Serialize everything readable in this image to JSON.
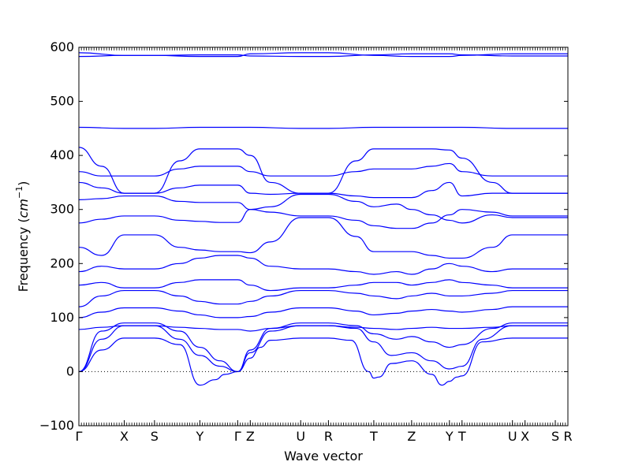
{
  "chart_data": {
    "type": "line",
    "title": "",
    "xlabel": "Wave vector",
    "ylabel_text": "Frequency (",
    "ylabel_unit": "cm",
    "ylabel_exp": "−1",
    "ylabel_close": ")",
    "ylim": [
      -100,
      600
    ],
    "yticks": [
      -100,
      0,
      100,
      200,
      300,
      400,
      500,
      600
    ],
    "zero_line": "dotted",
    "grid": false,
    "line_color": "#0000ff",
    "kpoints": [
      {
        "label": "Γ",
        "x": 0.0
      },
      {
        "label": "X",
        "x": 0.9
      },
      {
        "label": "S",
        "x": 1.5
      },
      {
        "label": "Y",
        "x": 2.4
      },
      {
        "label": "Γ",
        "x": 3.15
      },
      {
        "label": "Z",
        "x": 3.4
      },
      {
        "label": "U",
        "x": 4.4
      },
      {
        "label": "R",
        "x": 4.95
      },
      {
        "label": "T",
        "x": 5.85
      },
      {
        "label": "Z",
        "x": 6.6
      },
      {
        "label": "Y",
        "x": 7.35
      },
      {
        "label": "T",
        "x": 7.6
      },
      {
        "label": "U",
        "x": 8.6
      },
      {
        "label": "X",
        "x": 8.85
      },
      {
        "label": "S",
        "x": 9.45
      },
      {
        "label": "R",
        "x": 9.7
      }
    ],
    "xlim": [
      0,
      9.7
    ],
    "series": [
      {
        "x": [
          0,
          0.45,
          0.9,
          1.5,
          2.0,
          2.4,
          2.7,
          2.9,
          3.15,
          3.4,
          3.6,
          3.8,
          4.4,
          4.95,
          5.4,
          5.75,
          5.85,
          5.95,
          6.2,
          6.6,
          7.0,
          7.2,
          7.35,
          7.5,
          7.6,
          8.0,
          8.6,
          8.85,
          9.45,
          9.7
        ],
        "values": [
          0,
          40,
          62,
          62,
          50,
          -25,
          -15,
          -5,
          0,
          25,
          45,
          58,
          62,
          62,
          58,
          0,
          -12,
          -10,
          15,
          20,
          -5,
          -25,
          -18,
          -10,
          -8,
          55,
          62,
          62,
          62,
          62
        ]
      },
      {
        "x": [
          0,
          0.45,
          0.9,
          1.5,
          2.0,
          2.4,
          2.8,
          3.15,
          3.4,
          3.8,
          4.4,
          4.95,
          5.5,
          5.85,
          6.2,
          6.6,
          7.0,
          7.35,
          7.6,
          8.0,
          8.6,
          8.85,
          9.45,
          9.7
        ],
        "values": [
          0,
          60,
          85,
          85,
          60,
          30,
          10,
          0,
          35,
          75,
          85,
          85,
          80,
          55,
          30,
          35,
          20,
          5,
          10,
          60,
          85,
          85,
          85,
          85
        ]
      },
      {
        "x": [
          0,
          0.45,
          0.9,
          1.5,
          2.0,
          2.4,
          2.8,
          3.15,
          3.4,
          3.8,
          4.4,
          4.95,
          5.5,
          5.85,
          6.3,
          6.6,
          7.0,
          7.35,
          7.6,
          8.2,
          8.6,
          8.85,
          9.45,
          9.7
        ],
        "values": [
          0,
          75,
          90,
          90,
          75,
          45,
          20,
          0,
          40,
          80,
          90,
          90,
          85,
          70,
          60,
          65,
          55,
          45,
          50,
          80,
          90,
          90,
          90,
          90
        ]
      },
      {
        "x": [
          0,
          0.45,
          0.9,
          1.5,
          2.0,
          2.4,
          2.8,
          3.15,
          3.4,
          3.8,
          4.4,
          4.95,
          5.5,
          5.85,
          6.3,
          6.6,
          7.0,
          7.35,
          7.6,
          8.2,
          8.6,
          8.85,
          9.45,
          9.7
        ],
        "values": [
          78,
          82,
          85,
          85,
          82,
          80,
          78,
          78,
          75,
          80,
          85,
          85,
          82,
          80,
          78,
          80,
          82,
          80,
          80,
          82,
          85,
          85,
          85,
          85
        ]
      },
      {
        "x": [
          0,
          0.45,
          0.9,
          1.5,
          2.0,
          2.4,
          2.8,
          3.15,
          3.4,
          3.8,
          4.4,
          4.95,
          5.5,
          5.85,
          6.3,
          6.6,
          7.0,
          7.35,
          7.6,
          8.2,
          8.6,
          8.85,
          9.45,
          9.7
        ],
        "values": [
          100,
          110,
          118,
          118,
          112,
          105,
          100,
          100,
          102,
          110,
          118,
          118,
          112,
          105,
          108,
          112,
          115,
          112,
          110,
          115,
          120,
          120,
          120,
          120
        ]
      },
      {
        "x": [
          0,
          0.45,
          0.9,
          1.5,
          2.0,
          2.4,
          2.8,
          3.15,
          3.4,
          3.8,
          4.4,
          4.95,
          5.5,
          5.85,
          6.3,
          6.6,
          7.0,
          7.35,
          7.6,
          8.2,
          8.6,
          8.85,
          9.45,
          9.7
        ],
        "values": [
          120,
          140,
          150,
          150,
          140,
          130,
          125,
          125,
          130,
          140,
          150,
          150,
          145,
          140,
          135,
          140,
          145,
          140,
          140,
          145,
          150,
          150,
          150,
          150
        ]
      },
      {
        "x": [
          0,
          0.45,
          0.9,
          1.5,
          2.0,
          2.4,
          2.8,
          3.15,
          3.4,
          3.8,
          4.4,
          4.95,
          5.5,
          5.85,
          6.3,
          6.6,
          7.0,
          7.35,
          7.6,
          8.2,
          8.6,
          8.85,
          9.45,
          9.7
        ],
        "values": [
          160,
          165,
          155,
          155,
          165,
          170,
          170,
          170,
          160,
          150,
          155,
          155,
          160,
          165,
          165,
          160,
          165,
          170,
          165,
          160,
          155,
          155,
          155,
          155
        ]
      },
      {
        "x": [
          0,
          0.45,
          0.9,
          1.5,
          2.0,
          2.4,
          2.8,
          3.15,
          3.4,
          3.8,
          4.4,
          4.95,
          5.5,
          5.85,
          6.3,
          6.6,
          7.0,
          7.35,
          7.6,
          8.2,
          8.6,
          8.85,
          9.45,
          9.7
        ],
        "values": [
          185,
          195,
          190,
          190,
          200,
          210,
          215,
          215,
          210,
          195,
          190,
          190,
          185,
          180,
          185,
          180,
          190,
          200,
          195,
          185,
          190,
          190,
          190,
          190
        ]
      },
      {
        "x": [
          0,
          0.45,
          0.9,
          1.5,
          2.0,
          2.4,
          2.8,
          3.15,
          3.4,
          3.8,
          4.4,
          4.95,
          5.5,
          5.85,
          6.3,
          6.6,
          7.0,
          7.35,
          7.6,
          8.2,
          8.6,
          8.85,
          9.45,
          9.7
        ],
        "values": [
          230,
          215,
          253,
          253,
          230,
          225,
          222,
          222,
          220,
          240,
          285,
          285,
          250,
          222,
          222,
          222,
          215,
          210,
          210,
          230,
          253,
          253,
          253,
          253
        ]
      },
      {
        "x": [
          0,
          0.45,
          0.9,
          1.5,
          2.0,
          2.4,
          2.8,
          3.15,
          3.4,
          3.8,
          4.4,
          4.95,
          5.5,
          5.85,
          6.3,
          6.6,
          7.0,
          7.35,
          7.6,
          8.2,
          8.6,
          8.85,
          9.45,
          9.7
        ],
        "values": [
          275,
          282,
          288,
          288,
          280,
          278,
          276,
          276,
          300,
          295,
          288,
          288,
          280,
          270,
          265,
          265,
          275,
          290,
          300,
          295,
          288,
          288,
          288,
          288
        ]
      },
      {
        "x": [
          0,
          0.45,
          0.9,
          1.5,
          2.0,
          2.4,
          2.8,
          3.15,
          3.4,
          3.8,
          4.4,
          4.95,
          5.5,
          5.85,
          6.3,
          6.6,
          7.0,
          7.35,
          7.6,
          8.2,
          8.6,
          8.85,
          9.45,
          9.7
        ],
        "values": [
          318,
          320,
          325,
          325,
          315,
          313,
          313,
          313,
          300,
          305,
          328,
          328,
          315,
          305,
          310,
          300,
          290,
          280,
          275,
          290,
          285,
          285,
          285,
          285
        ]
      },
      {
        "x": [
          0,
          0.45,
          0.9,
          1.5,
          2.0,
          2.4,
          2.8,
          3.15,
          3.4,
          3.8,
          4.4,
          4.95,
          5.5,
          5.85,
          6.3,
          6.6,
          7.0,
          7.35,
          7.6,
          8.2,
          8.6,
          8.85,
          9.45,
          9.7
        ],
        "values": [
          350,
          340,
          330,
          330,
          340,
          345,
          345,
          345,
          330,
          328,
          330,
          330,
          325,
          322,
          322,
          322,
          335,
          350,
          325,
          330,
          330,
          330,
          330,
          330
        ]
      },
      {
        "x": [
          0,
          0.45,
          0.9,
          1.5,
          2.0,
          2.4,
          2.8,
          3.15,
          3.4,
          3.8,
          4.4,
          4.95,
          5.5,
          5.85,
          6.3,
          6.6,
          7.0,
          7.35,
          7.6,
          8.2,
          8.6,
          8.85,
          9.45,
          9.7
        ],
        "values": [
          370,
          362,
          362,
          362,
          375,
          380,
          380,
          380,
          370,
          362,
          362,
          362,
          370,
          375,
          375,
          375,
          380,
          385,
          370,
          362,
          362,
          362,
          362,
          362
        ]
      },
      {
        "x": [
          0,
          0.45,
          0.9,
          1.5,
          2.0,
          2.4,
          2.8,
          3.15,
          3.4,
          3.8,
          4.4,
          4.95,
          5.5,
          5.85,
          6.3,
          6.6,
          7.0,
          7.35,
          7.6,
          8.2,
          8.6,
          8.85,
          9.45,
          9.7
        ],
        "values": [
          415,
          380,
          330,
          330,
          390,
          412,
          412,
          412,
          400,
          350,
          330,
          330,
          390,
          412,
          412,
          412,
          412,
          410,
          395,
          350,
          330,
          330,
          330,
          330
        ]
      },
      {
        "x": [
          0,
          0.9,
          1.5,
          2.4,
          3.15,
          3.4,
          4.4,
          4.95,
          5.85,
          6.6,
          7.35,
          7.6,
          8.6,
          8.85,
          9.45,
          9.7
        ],
        "values": [
          452,
          450,
          450,
          452,
          452,
          452,
          450,
          450,
          452,
          452,
          452,
          452,
          450,
          450,
          450,
          450
        ]
      },
      {
        "x": [
          0,
          0.9,
          1.5,
          2.4,
          3.15,
          3.4,
          4.4,
          4.95,
          5.85,
          6.6,
          7.35,
          7.6,
          8.6,
          8.85,
          9.45,
          9.7
        ],
        "values": [
          583,
          585,
          585,
          586,
          586,
          584,
          583,
          583,
          586,
          588,
          588,
          586,
          584,
          584,
          584,
          584
        ]
      },
      {
        "x": [
          0,
          0.9,
          1.5,
          2.4,
          3.15,
          3.4,
          4.4,
          4.95,
          5.85,
          6.6,
          7.35,
          7.6,
          8.6,
          8.85,
          9.45,
          9.7
        ],
        "values": [
          590,
          585,
          585,
          583,
          583,
          588,
          590,
          590,
          585,
          583,
          583,
          585,
          588,
          588,
          588,
          588
        ]
      }
    ]
  }
}
